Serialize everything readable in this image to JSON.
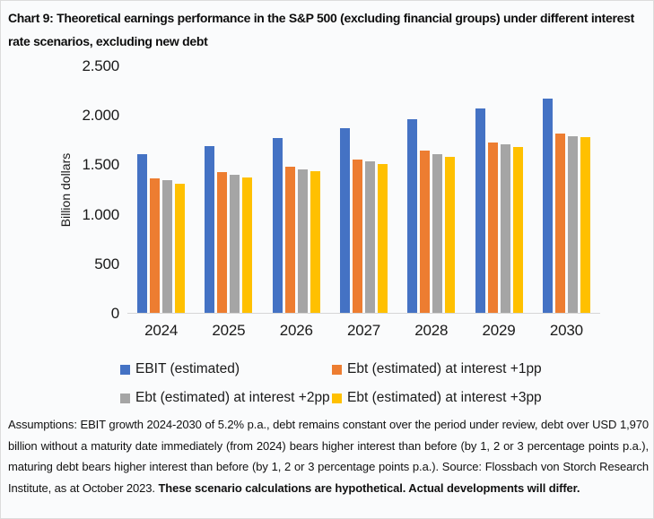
{
  "title": "Chart 9: Theoretical earnings performance in the S&P 500 (excluding financial groups) under different interest rate scenarios, excluding new debt",
  "chart_data": {
    "type": "bar",
    "title": "Chart 9: Theoretical earnings performance in the S&P 500 (excluding financial groups) under different interest rate scenarios, excluding new debt",
    "xlabel": "",
    "ylabel": "Billion dollars",
    "ylim": [
      0,
      2500
    ],
    "y_ticks": [
      "0",
      "500",
      "1.000",
      "1.500",
      "2.000",
      "2.500"
    ],
    "grid": false,
    "legend_position": "bottom",
    "categories": [
      "2024",
      "2025",
      "2026",
      "2027",
      "2028",
      "2029",
      "2030"
    ],
    "series": [
      {
        "name": "EBIT (estimated)",
        "color": "#4472C4",
        "values": [
          1600,
          1683,
          1771,
          1863,
          1960,
          2062,
          2169
        ]
      },
      {
        "name": "Ebt (estimated) at interest +1pp",
        "color": "#ED7D31",
        "values": [
          1360,
          1425,
          1480,
          1548,
          1640,
          1722,
          1815
        ]
      },
      {
        "name": "Ebt (estimated) at interest +2pp",
        "color": "#A5A5A5",
        "values": [
          1338,
          1396,
          1452,
          1528,
          1605,
          1702,
          1788
        ]
      },
      {
        "name": "Ebt (estimated) at interest +3pp",
        "color": "#FFC000",
        "values": [
          1308,
          1368,
          1428,
          1505,
          1575,
          1678,
          1772
        ]
      }
    ]
  },
  "footnote": {
    "normal": "Assumptions: EBIT growth 2024-2030 of 5.2% p.a., debt remains constant over the period under review, debt over USD 1,970 billion without a maturity date immediately (from 2024) bears higher interest than before (by 1, 2 or 3 percentage points p.a.), maturing debt bears higher interest than before (by 1, 2 or 3 percentage points p.a.). Source: Flossbach von Storch Research Institute, as at October 2023. ",
    "bold": "These scenario calculations are hypothetical. Actual developments will differ."
  }
}
